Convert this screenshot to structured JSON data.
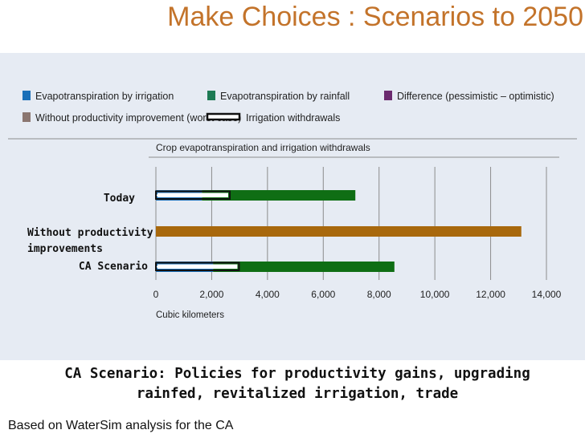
{
  "slide": {
    "title": "Make Choices : Scenarios to 2050",
    "caption": "CA Scenario: Policies for productivity gains, upgrading rainfed, revitalized irrigation, trade",
    "source": "Based on WaterSim analysis for the CA"
  },
  "chart_data": {
    "type": "bar",
    "orientation": "horizontal",
    "stacked": true,
    "title": "Crop evapotranspiration and irrigation withdrawals",
    "xlabel": "Cubic kilometers",
    "ylabel": "",
    "xlim": [
      0,
      14000
    ],
    "xticks": [
      0,
      2000,
      4000,
      6000,
      8000,
      10000,
      12000,
      14000
    ],
    "xtick_labels": [
      "0",
      "2,000",
      "4,000",
      "6,000",
      "8,000",
      "10,000",
      "12,000",
      "14,000"
    ],
    "grid": "vertical",
    "legend_position": "top",
    "categories": [
      {
        "label": "Today",
        "label_lines": [
          "Today"
        ]
      },
      {
        "label": "Without productivity improvements",
        "label_lines": [
          "Without productivity",
          "improvements"
        ]
      },
      {
        "label": "CA Scenario",
        "label_lines": [
          "CA Scenario"
        ]
      }
    ],
    "legend": [
      {
        "name": "Evapotranspiration by irrigation",
        "color": "#1a6fb8",
        "kind": "fill"
      },
      {
        "name": "Evapotranspiration by rainfall",
        "color": "#1d7a54",
        "kind": "fill"
      },
      {
        "name": "Difference (pessimistic – optimistic)",
        "color": "#6b2a6e",
        "kind": "fill"
      },
      {
        "name": "Without productivity improvement (worst case)",
        "color": "#8b7670",
        "kind": "fill"
      },
      {
        "name": "Irrigation withdrawals",
        "color": "#111111",
        "kind": "outline"
      }
    ],
    "series": [
      {
        "name": "Evapotranspiration by irrigation",
        "color": "#1a6fb8",
        "values": [
          1650,
          0,
          2050
        ]
      },
      {
        "name": "Evapotranspiration by rainfall",
        "color": "#0f6e14",
        "values": [
          5500,
          0,
          6500
        ]
      },
      {
        "name": "Without productivity improvement (worst case)",
        "color": "#a8680c",
        "values": [
          0,
          13100,
          0
        ]
      },
      {
        "name": "Irrigation withdrawals",
        "color": "#ffffff",
        "style": "outline",
        "values": [
          2650,
          0,
          2980
        ]
      }
    ]
  }
}
